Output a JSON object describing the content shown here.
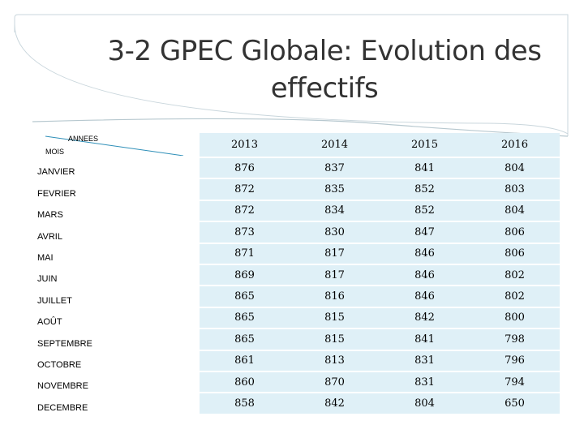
{
  "slide": {
    "title": "3-2 GPEC Globale: Evolution des effectifs"
  },
  "table": {
    "corner": {
      "col_label": "ANNEES",
      "row_label": "MOIS"
    },
    "years": [
      "2013",
      "2014",
      "2015",
      "2016"
    ],
    "rows": [
      {
        "month": "JANVIER",
        "values": [
          "876",
          "837",
          "841",
          "804"
        ]
      },
      {
        "month": "FEVRIER",
        "values": [
          "872",
          "835",
          "852",
          "803"
        ]
      },
      {
        "month": "MARS",
        "values": [
          "872",
          "834",
          "852",
          "804"
        ]
      },
      {
        "month": "AVRIL",
        "values": [
          "873",
          "830",
          "847",
          "806"
        ]
      },
      {
        "month": "MAI",
        "values": [
          "871",
          "817",
          "846",
          "806"
        ]
      },
      {
        "month": "JUIN",
        "values": [
          "869",
          "817",
          "846",
          "802"
        ]
      },
      {
        "month": "JUILLET",
        "values": [
          "865",
          "816",
          "846",
          "802"
        ]
      },
      {
        "month": "AOÛT",
        "values": [
          "865",
          "815",
          "842",
          "800"
        ]
      },
      {
        "month": "SEPTEMBRE",
        "values": [
          "865",
          "815",
          "841",
          "798"
        ]
      },
      {
        "month": "OCTOBRE",
        "values": [
          "861",
          "813",
          "831",
          "796"
        ]
      },
      {
        "month": "NOVEMBRE",
        "values": [
          "860",
          "870",
          "831",
          "794"
        ]
      },
      {
        "month": "DECEMBRE",
        "values": [
          "858",
          "842",
          "804",
          "650"
        ]
      }
    ]
  },
  "colors": {
    "cell_fill": "#dff0f7",
    "arc_line": "#7fa7b8",
    "diagonal": "#2e8fb8"
  }
}
